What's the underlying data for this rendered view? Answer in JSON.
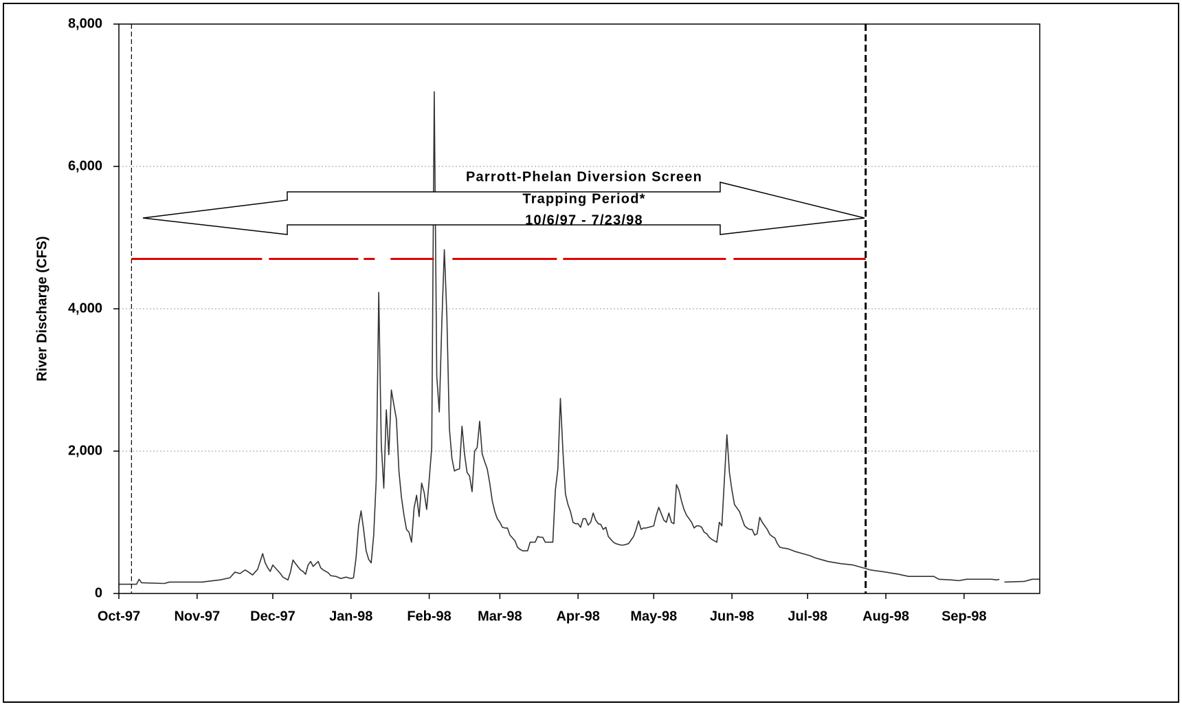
{
  "chart_data": {
    "type": "line",
    "y_label": "River Discharge (CFS)",
    "annotation": [
      "Parrott-Phelan Diversion Screen",
      "Trapping Period*",
      "10/6/97 - 7/23/98"
    ],
    "xlim": [
      0,
      365
    ],
    "xticks": [
      {
        "value": 0,
        "label": "Oct-97"
      },
      {
        "value": 31,
        "label": "Nov-97"
      },
      {
        "value": 61,
        "label": "Dec-97"
      },
      {
        "value": 92,
        "label": "Jan-98"
      },
      {
        "value": 123,
        "label": "Feb-98"
      },
      {
        "value": 151,
        "label": "Mar-98"
      },
      {
        "value": 182,
        "label": "Apr-98"
      },
      {
        "value": 212,
        "label": "May-98"
      },
      {
        "value": 243,
        "label": "Jun-98"
      },
      {
        "value": 273,
        "label": "Jul-98"
      },
      {
        "value": 304,
        "label": "Aug-98"
      },
      {
        "value": 335,
        "label": "Sep-98"
      }
    ],
    "ylim": [
      0,
      8000
    ],
    "yticks": [
      {
        "value": 0,
        "label": "0"
      },
      {
        "value": 2000,
        "label": "2,000"
      },
      {
        "value": 4000,
        "label": "4,000"
      },
      {
        "value": 6000,
        "label": "6,000"
      },
      {
        "value": 8000,
        "label": "8,000"
      }
    ],
    "grid": true,
    "period_lines": [
      5,
      296
    ],
    "reference_line": {
      "value": 4700,
      "color": "#e00000",
      "x": [
        5,
        296
      ]
    },
    "x": [
      0,
      7,
      8,
      9,
      18,
      20,
      33,
      35,
      40,
      44,
      45,
      46,
      48,
      50,
      51,
      53,
      54,
      55,
      57,
      58,
      59,
      60,
      61,
      62,
      64,
      65,
      67,
      68,
      69,
      70,
      72,
      73,
      74,
      75,
      76,
      77,
      79,
      80,
      81,
      83,
      84,
      86,
      88,
      90,
      92,
      93,
      94,
      95,
      96,
      97,
      98,
      99,
      100,
      101,
      102,
      103,
      104,
      105,
      106,
      107,
      108,
      109,
      110,
      111,
      112,
      113,
      114,
      115,
      116,
      117,
      118,
      119,
      120,
      121,
      122,
      123,
      124,
      125,
      126,
      127,
      128,
      129,
      130,
      131,
      132,
      133,
      134,
      135,
      136,
      137,
      138,
      139,
      140,
      141,
      142,
      143,
      144,
      145,
      146,
      147,
      148,
      149,
      150,
      151,
      152,
      153,
      154,
      155,
      156,
      157,
      158,
      159,
      160,
      161,
      162,
      163,
      164,
      165,
      166,
      167,
      168,
      169,
      170,
      171,
      172,
      173,
      174,
      175,
      176,
      177,
      178,
      179,
      180,
      181,
      182,
      183,
      184,
      185,
      186,
      187,
      188,
      189,
      190,
      191,
      192,
      193,
      194,
      195,
      196,
      197,
      198,
      199,
      200,
      201,
      202,
      203,
      204,
      205,
      206,
      207,
      208,
      209,
      210,
      211,
      212,
      213,
      214,
      215,
      216,
      217,
      218,
      219,
      220,
      221,
      222,
      223,
      224,
      225,
      226,
      227,
      228,
      229,
      230,
      231,
      232,
      233,
      234,
      235,
      236,
      237,
      238,
      239,
      240,
      241,
      242,
      243,
      244,
      245,
      246,
      247,
      248,
      249,
      250,
      251,
      252,
      253,
      254,
      255,
      256,
      257,
      258,
      259,
      260,
      261,
      262,
      263,
      265,
      268,
      271,
      274,
      276,
      278,
      281,
      286,
      291,
      296,
      298,
      304,
      309,
      313,
      323,
      325,
      330,
      333,
      336,
      346,
      348,
      349,
      350,
      351,
      359,
      362,
      365
    ],
    "series": [
      {
        "name": "River Discharge",
        "color": "#333333",
        "values": [
          130,
          130,
          200,
          150,
          140,
          160,
          160,
          170,
          190,
          220,
          260,
          300,
          280,
          330,
          310,
          260,
          300,
          340,
          560,
          430,
          360,
          310,
          400,
          360,
          280,
          230,
          190,
          300,
          470,
          420,
          330,
          310,
          270,
          400,
          450,
          380,
          450,
          360,
          330,
          290,
          250,
          240,
          210,
          230,
          210,
          220,
          500,
          950,
          1160,
          900,
          600,
          480,
          430,
          820,
          1600,
          4230,
          2100,
          1480,
          2580,
          1950,
          2860,
          2650,
          2450,
          1720,
          1350,
          1100,
          900,
          860,
          720,
          1200,
          1380,
          1080,
          1550,
          1420,
          1180,
          1600,
          2050,
          7050,
          3050,
          2550,
          3800,
          4830,
          3900,
          2320,
          1900,
          1720,
          1740,
          1750,
          2350,
          1960,
          1700,
          1650,
          1430,
          2000,
          2050,
          2420,
          1960,
          1850,
          1750,
          1550,
          1300,
          1150,
          1050,
          1000,
          930,
          920,
          920,
          820,
          780,
          740,
          650,
          620,
          600,
          600,
          600,
          720,
          720,
          720,
          800,
          790,
          790,
          720,
          720,
          720,
          720,
          1450,
          1750,
          2740,
          2000,
          1400,
          1250,
          1150,
          1000,
          980,
          980,
          930,
          1050,
          1050,
          960,
          1000,
          1130,
          1030,
          980,
          970,
          900,
          930,
          800,
          760,
          720,
          700,
          690,
          680,
          680,
          690,
          700,
          750,
          800,
          900,
          1020,
          900,
          920,
          920,
          930,
          940,
          950,
          1100,
          1210,
          1120,
          1030,
          1000,
          1130,
          1000,
          980,
          1530,
          1450,
          1300,
          1180,
          1100,
          1050,
          1000,
          920,
          950,
          950,
          930,
          860,
          840,
          790,
          760,
          740,
          720,
          1000,
          950,
          1600,
          2230,
          1700,
          1450,
          1250,
          1200,
          1150,
          1050,
          950,
          920,
          900,
          900,
          820,
          840,
          1070,
          1000,
          950,
          900,
          830,
          800,
          780,
          700,
          650,
          640,
          630,
          590,
          560,
          530,
          500,
          480,
          450,
          420,
          400,
          350,
          330,
          300,
          270,
          240,
          240,
          200,
          190,
          180,
          200,
          200,
          190,
          200,
          null,
          160,
          170,
          200,
          200
        ]
      }
    ]
  }
}
